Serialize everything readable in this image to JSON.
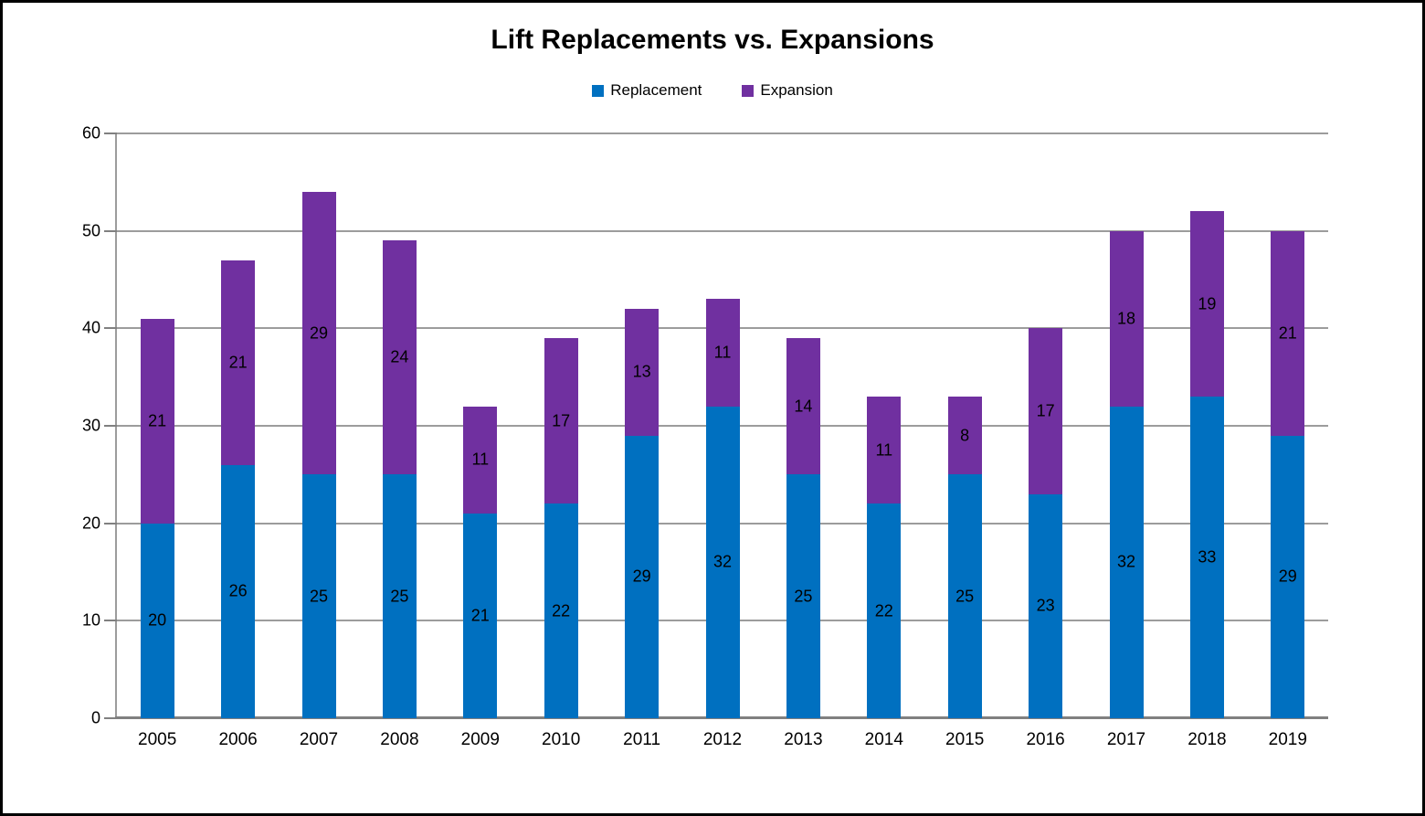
{
  "title": "Lift Replacements vs. Expansions",
  "legend": {
    "position": "top",
    "items": [
      {
        "label": "Replacement",
        "color": "#0070C0"
      },
      {
        "label": "Expansion",
        "color": "#7030A0"
      }
    ]
  },
  "chart_data": {
    "type": "bar",
    "stacked": true,
    "title": "Lift Replacements vs. Expansions",
    "xlabel": "",
    "ylabel": "",
    "categories": [
      "2005",
      "2006",
      "2007",
      "2008",
      "2009",
      "2010",
      "2011",
      "2012",
      "2013",
      "2014",
      "2015",
      "2016",
      "2017",
      "2018",
      "2019"
    ],
    "series": [
      {
        "name": "Replacement",
        "color": "#0070C0",
        "values": [
          20,
          26,
          25,
          25,
          21,
          22,
          29,
          32,
          25,
          22,
          25,
          23,
          32,
          33,
          29
        ]
      },
      {
        "name": "Expansion",
        "color": "#7030A0",
        "values": [
          21,
          21,
          29,
          24,
          11,
          17,
          13,
          11,
          14,
          11,
          8,
          17,
          18,
          19,
          21
        ]
      }
    ],
    "totals": [
      41,
      47,
      54,
      49,
      32,
      39,
      42,
      43,
      39,
      33,
      33,
      40,
      50,
      52,
      50
    ],
    "ylim": [
      0,
      60
    ],
    "ytick_step": 10,
    "y_ticks": [
      "0",
      "10",
      "20",
      "30",
      "40",
      "50",
      "60"
    ],
    "grid": true,
    "data_labels": true,
    "legend_position": "top",
    "colors": {
      "gridline": "#9c9c9c",
      "axis": "#808080",
      "label_text": "#000000",
      "background": "#ffffff",
      "border": "#000000"
    }
  }
}
